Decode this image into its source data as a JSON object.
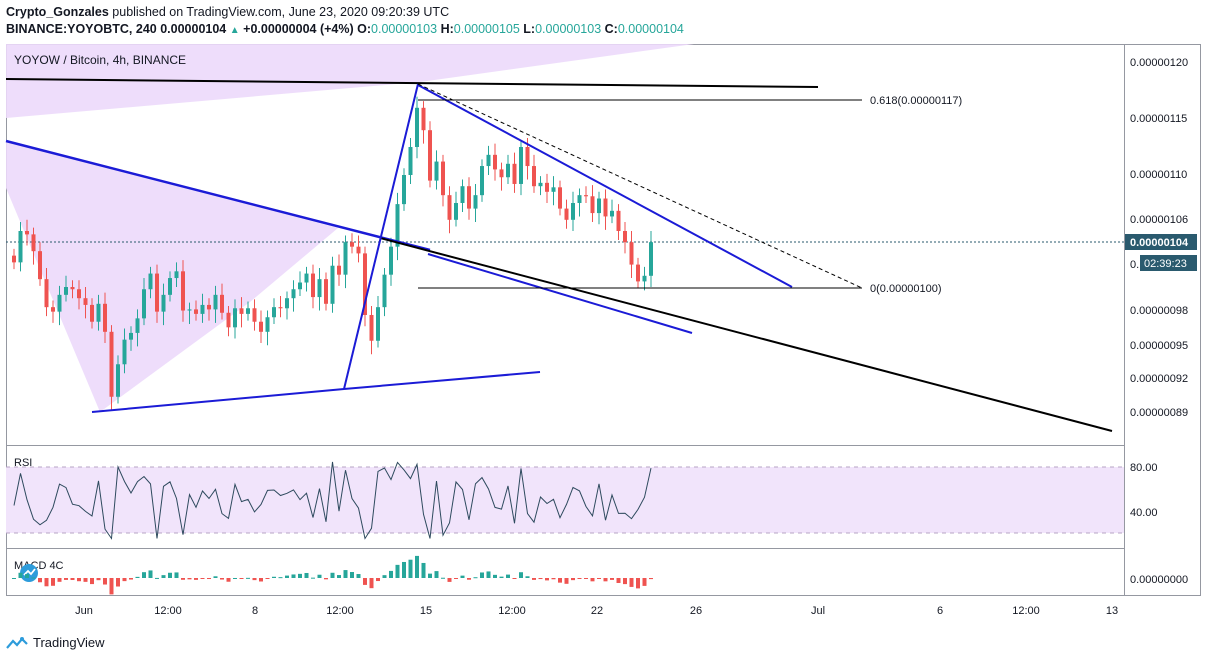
{
  "header": {
    "author": "Crypto_Gonzales",
    "published": "published on TradingView.com, June 23, 2020 09:20:39 UTC",
    "symbol": "BINANCE:YOYOBTC, 240",
    "price": "0.00000104",
    "change": "+0.00000004 (+4%)",
    "o_label": "O:",
    "o": "0.00000103",
    "h_label": "H:",
    "h": "0.00000105",
    "l_label": "L:",
    "l": "0.00000103",
    "c_label": "C:",
    "c": "0.00000104"
  },
  "legend": "YOYOW / Bitcoin, 4h, BINANCE",
  "price_badge": "0.00000104",
  "countdown_badge": "02:39:23",
  "fib_618_label": "0.618(0.00000117)",
  "fib_0_label": "0(0.00000100)",
  "rsi_label": "RSI",
  "macd_label": "MACD 4C",
  "footer": "TradingView",
  "colors": {
    "up": "#26a69a",
    "down": "#ef5350",
    "trend_blue": "#1b1bd6",
    "trend_black": "#000000",
    "rsi_band": "#f1e4fb",
    "rsi_line": "#2e4a5e",
    "macd_up": "#26a69a",
    "macd_down": "#ef5350",
    "pattern_fill": "#e7cffa",
    "price_badge": "#2a5a6e"
  },
  "chart_data": [
    {
      "type": "candlestick",
      "title": "YOYOW / Bitcoin, 4h, BINANCE",
      "y_ticks": [
        "0.00000120",
        "0.00000115",
        "0.00000110",
        "0.00000106",
        "0.00000098",
        "0.00000095",
        "0.00000092",
        "0.00000089"
      ],
      "x_ticks": [
        "Jun",
        "12:00",
        "8",
        "12:00",
        "15",
        "12:00",
        "22",
        "26",
        "Jul",
        "6",
        "12:00",
        "13"
      ],
      "last_price": 1.04e-06,
      "series": [
        {
          "values": [
            1.022,
            1.05,
            1.047,
            1.032,
            1.007,
            0.982,
            0.978,
            0.993,
            1.0,
            0.998,
            0.99,
            0.984,
            0.969,
            0.985,
            0.96,
            0.902,
            0.931,
            0.953,
            0.959,
            0.972,
            0.998,
            1.012,
            0.978,
            0.993,
            1.008,
            1.014,
            0.979,
            0.98,
            0.976,
            0.984,
            0.98,
            0.993,
            0.977,
            0.964,
            0.981,
            0.976,
            0.981,
            0.969,
            0.96,
            0.973,
            0.982,
            0.981,
            0.99,
            0.998,
            1.004,
            1.012,
            0.991,
            1.007,
            0.985,
            1.019,
            1.011,
            1.04,
            1.036,
            1.03,
            0.975,
            0.952,
            0.982,
            1.011,
            1.036,
            1.074,
            1.1,
            1.125,
            1.16,
            1.14,
            1.095,
            1.112,
            1.082,
            1.06,
            1.075,
            1.09,
            1.07,
            1.082,
            1.108,
            1.118,
            1.105,
            1.098,
            1.11,
            1.092,
            1.125,
            1.108,
            1.09,
            1.093,
            1.085,
            1.089,
            1.07,
            1.06,
            1.075,
            1.082,
            1.081,
            1.066,
            1.079,
            1.063,
            1.068,
            1.05,
            1.04,
            1.02,
            1.005,
            1.01,
            1.04
          ]
        }
      ],
      "annotations": [
        "0.618(0.00000117)",
        "0(0.00000100)"
      ]
    },
    {
      "type": "line",
      "title": "RSI",
      "y_ticks": [
        "80.00",
        "40.00"
      ],
      "bands": [
        80,
        20
      ]
    },
    {
      "type": "bar",
      "title": "MACD 4C",
      "y_ticks": [
        "0.00000000"
      ]
    }
  ]
}
